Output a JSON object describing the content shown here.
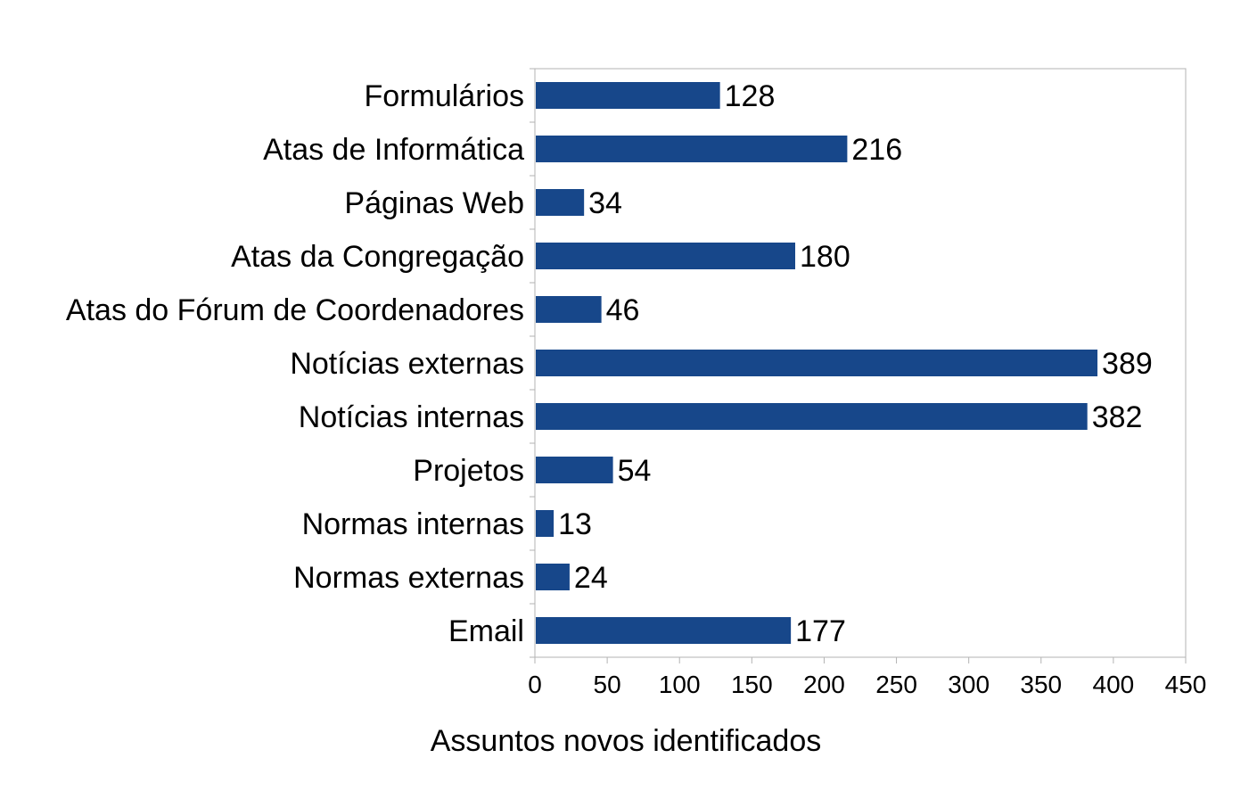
{
  "chart_data": {
    "type": "bar",
    "orientation": "horizontal",
    "categories": [
      "Formulários",
      "Atas de Informática",
      "Páginas Web",
      "Atas da Congregação",
      "Atas do Fórum de Coordenadores",
      "Notícias externas",
      "Notícias internas",
      "Projetos",
      "Normas internas",
      "Normas externas",
      "Email"
    ],
    "values": [
      128,
      216,
      34,
      180,
      46,
      389,
      382,
      54,
      13,
      24,
      177
    ],
    "title": "",
    "xlabel": "Assuntos novos identificados",
    "ylabel": "",
    "xlim": [
      0,
      450
    ],
    "xticks": [
      0,
      50,
      100,
      150,
      200,
      250,
      300,
      350,
      400,
      450
    ],
    "grid": false,
    "legend": "none",
    "data_labels": true,
    "colors": {
      "bar": "#17478a",
      "axis": "#b3b3b3",
      "frame": "#b3b3b3",
      "text": "#000000"
    }
  }
}
